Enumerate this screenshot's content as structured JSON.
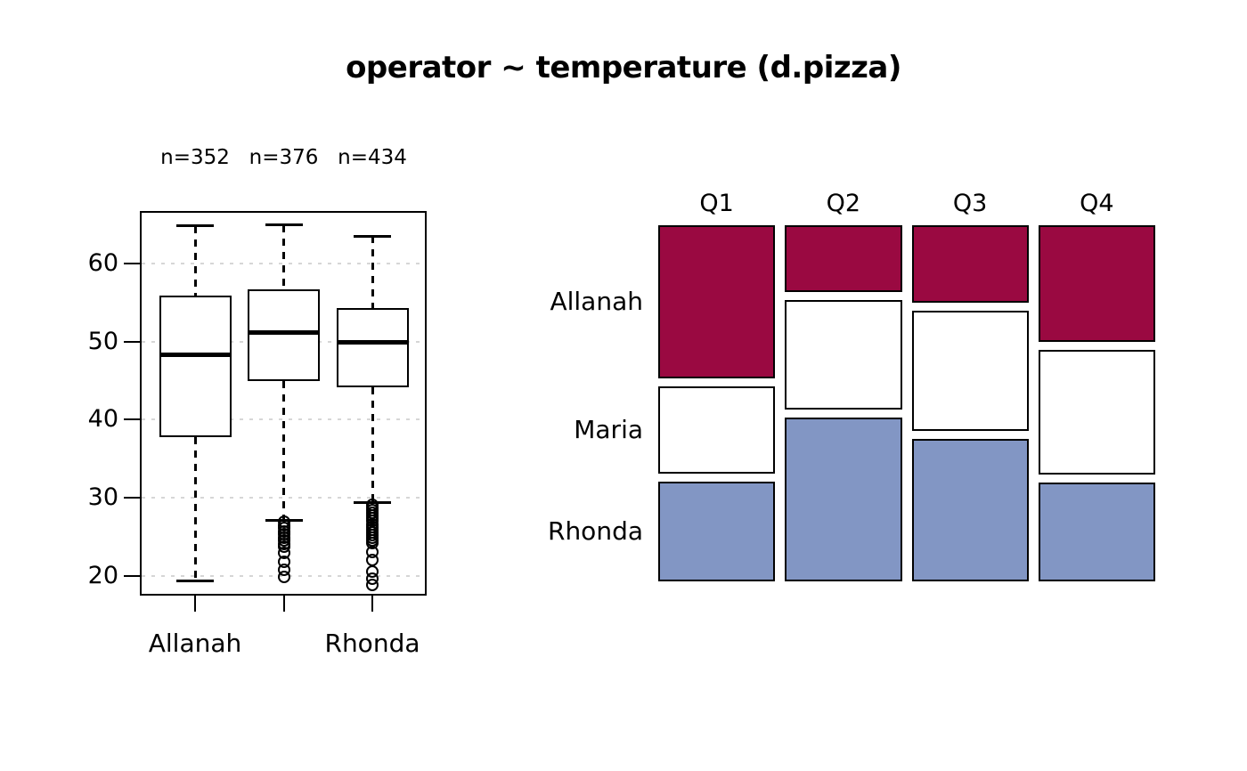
{
  "title": "operator ~ temperature (d.pizza)",
  "chart_data": [
    {
      "type": "boxplot",
      "title": "",
      "ylabel": "",
      "xlabel": "",
      "y_ticks": [
        20,
        30,
        40,
        50,
        60
      ],
      "ylim": [
        17.5,
        66.7
      ],
      "grid": "dotted-horizontal",
      "groups": [
        {
          "x_label": "Allanah",
          "count_label": "n=352",
          "n": 352,
          "whisker_low": 19.4,
          "q1": 37.8,
          "median": 48.3,
          "q3": 55.9,
          "whisker_high": 64.8,
          "outliers": []
        },
        {
          "x_label": "",
          "count_label": "n=376",
          "n": 376,
          "whisker_low": 27.1,
          "q1": 44.9,
          "median": 51.2,
          "q3": 56.7,
          "whisker_high": 64.9,
          "outliers": [
            26.9,
            26.5,
            26.1,
            25.7,
            25.3,
            24.9,
            24.5,
            24.1,
            23.75,
            22.9,
            21.8,
            20.75,
            19.9
          ]
        },
        {
          "x_label": "Rhonda",
          "count_label": "n=434",
          "n": 434,
          "whisker_low": 29.4,
          "q1": 44.2,
          "median": 49.9,
          "q3": 54.3,
          "whisker_high": 63.5,
          "outliers": [
            29.1,
            28.75,
            28.4,
            28.05,
            27.7,
            27.35,
            27.0,
            26.65,
            26.3,
            25.95,
            25.6,
            25.25,
            24.9,
            24.55,
            24.2,
            23.1,
            22.0,
            20.6,
            19.7,
            18.9
          ]
        }
      ]
    },
    {
      "type": "mosaic",
      "rows": [
        "Allanah",
        "Maria",
        "Rhonda"
      ],
      "row_colors": {
        "Allanah": "#9A0941",
        "Maria": "#FFFFFF",
        "Rhonda": "#8296C4"
      },
      "columns": [
        {
          "label": "Q1",
          "width_frac": 0.25,
          "segments": [
            {
              "row": "Allanah",
              "frac": 0.451
            },
            {
              "row": "Maria",
              "frac": 0.257
            },
            {
              "row": "Rhonda",
              "frac": 0.292
            }
          ]
        },
        {
          "label": "Q2",
          "width_frac": 0.25,
          "segments": [
            {
              "row": "Allanah",
              "frac": 0.196
            },
            {
              "row": "Maria",
              "frac": 0.322
            },
            {
              "row": "Rhonda",
              "frac": 0.482
            }
          ]
        },
        {
          "label": "Q3",
          "width_frac": 0.25,
          "segments": [
            {
              "row": "Allanah",
              "frac": 0.228
            },
            {
              "row": "Maria",
              "frac": 0.353
            },
            {
              "row": "Rhonda",
              "frac": 0.419
            }
          ]
        },
        {
          "label": "Q4",
          "width_frac": 0.25,
          "segments": [
            {
              "row": "Allanah",
              "frac": 0.343
            },
            {
              "row": "Maria",
              "frac": 0.366
            },
            {
              "row": "Rhonda",
              "frac": 0.291
            }
          ]
        }
      ]
    }
  ]
}
